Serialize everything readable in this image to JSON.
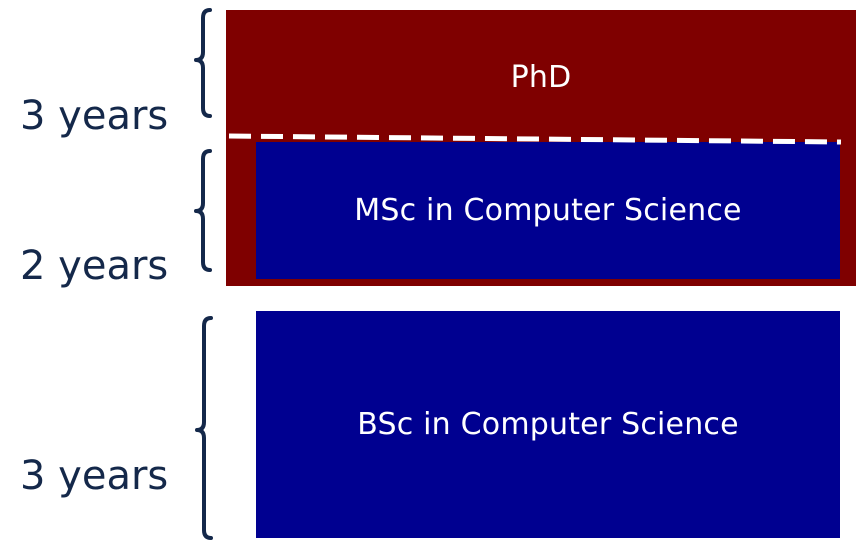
{
  "diagram": {
    "stages": [
      {
        "label": "PhD",
        "duration": "3 years"
      },
      {
        "label": "MSc in Computer Science",
        "duration": "2 years"
      },
      {
        "label": "BSc in Computer Science",
        "duration": "3 years"
      }
    ],
    "colors": {
      "phd_box": "#7f0000",
      "bsc_msc_box": "#000090",
      "text_on_box": "#ffffff",
      "duration_text": "#14284a",
      "bracket": "#14284a",
      "divider": "#ffffff"
    }
  }
}
